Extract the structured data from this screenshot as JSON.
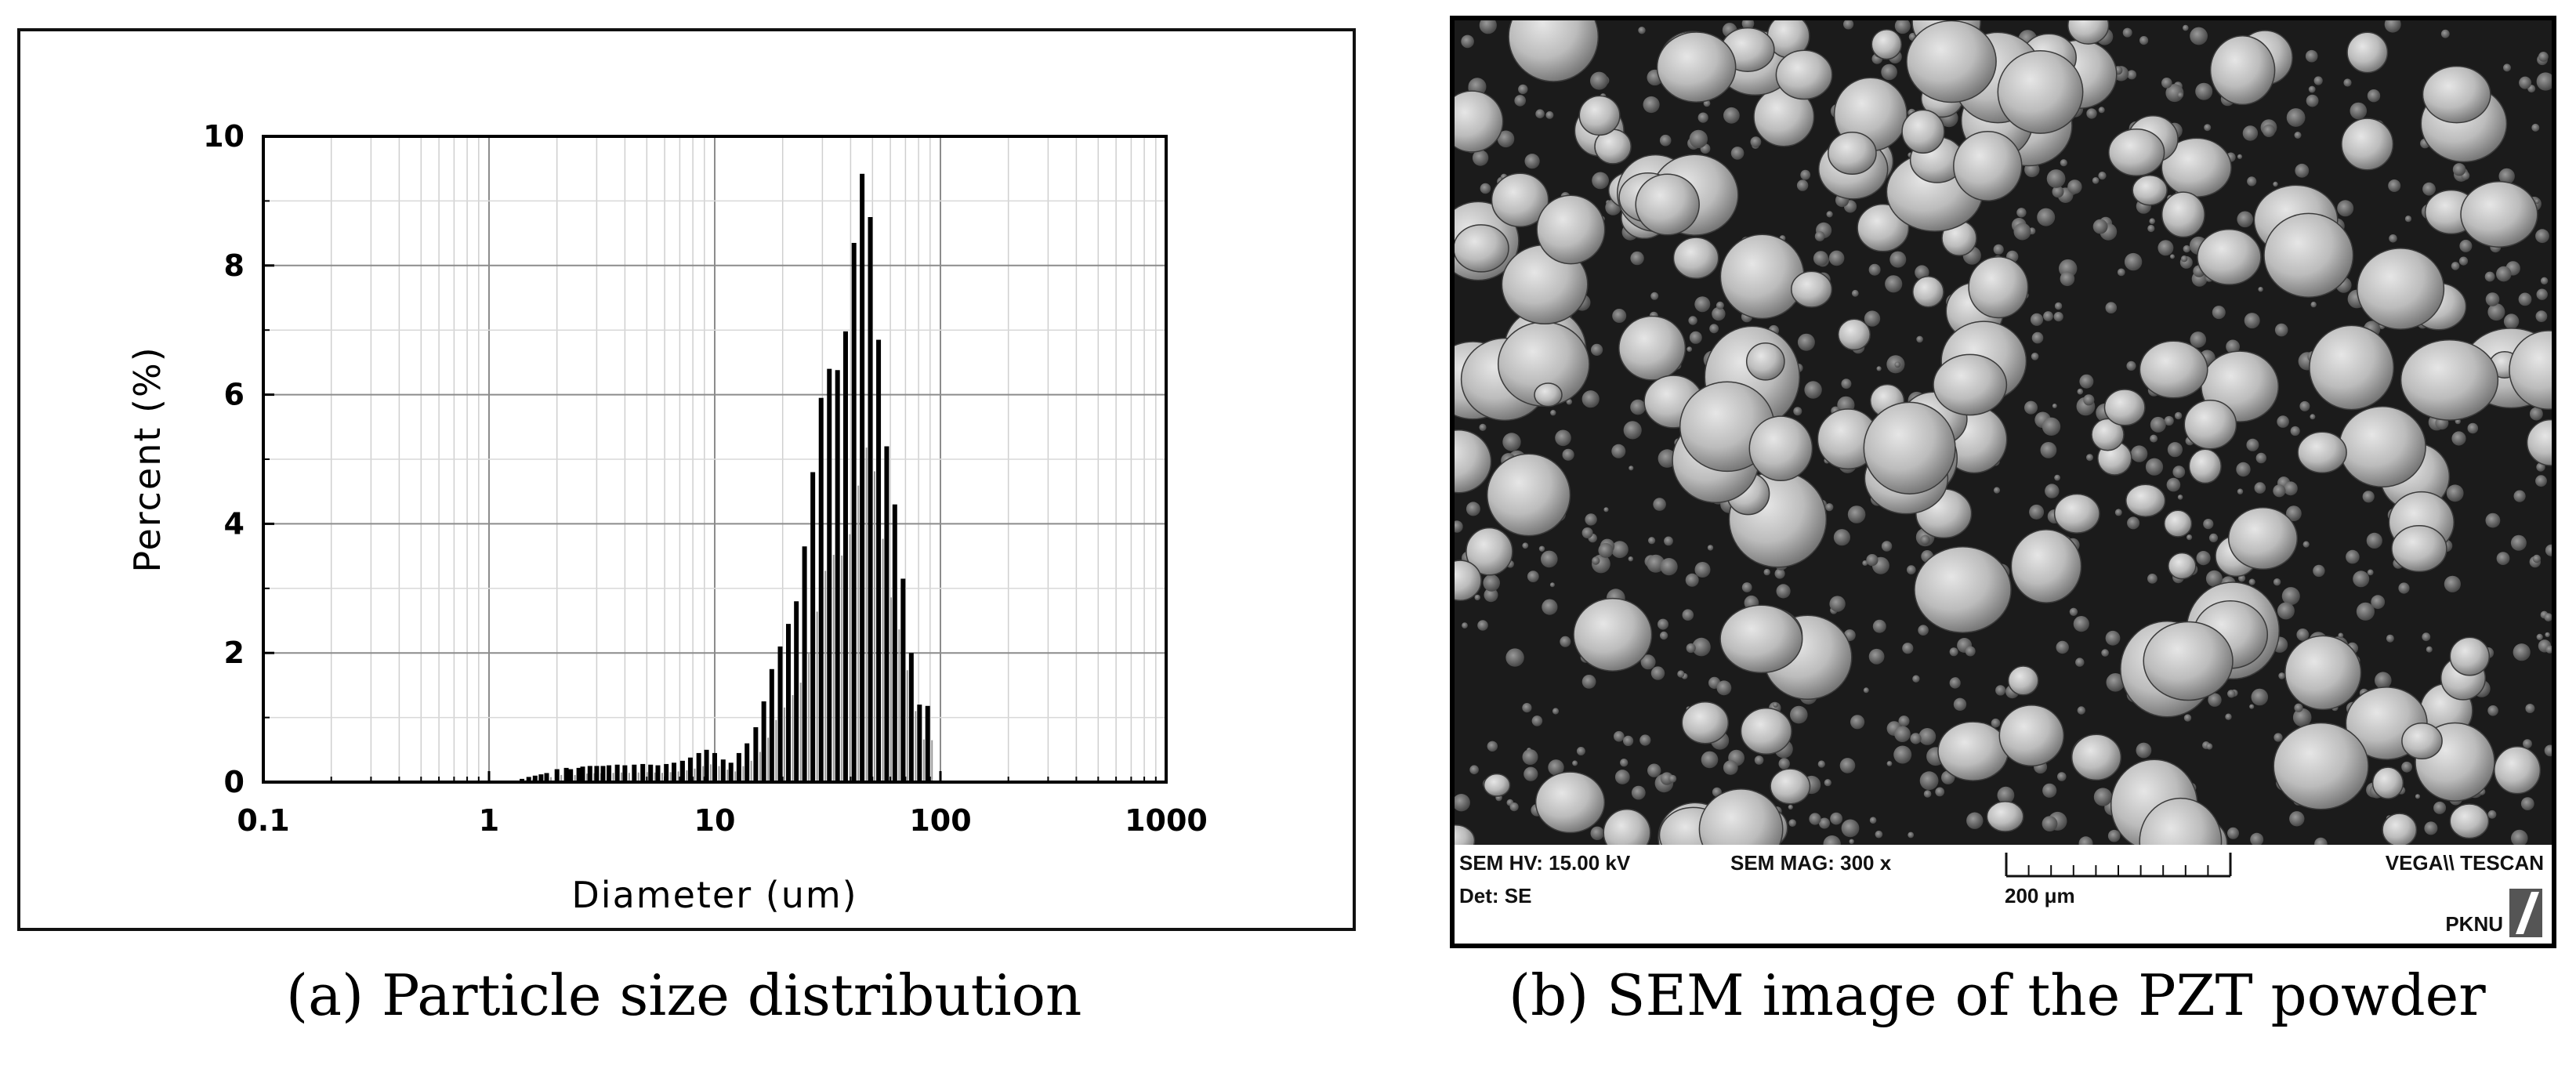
{
  "chart_data": {
    "type": "bar",
    "xscale": "log",
    "xlabel": "Diameter (um)",
    "ylabel": "Percent (%)",
    "xlim": [
      0.1,
      1000
    ],
    "ylim": [
      0,
      10
    ],
    "xticks": [
      "0.1",
      "1",
      "10",
      "100",
      "1000"
    ],
    "yticks": [
      "0",
      "2",
      "4",
      "6",
      "8",
      "10"
    ],
    "grid": true,
    "x": [
      1.4,
      1.5,
      1.6,
      1.7,
      1.8,
      2.0,
      2.2,
      2.3,
      2.5,
      2.6,
      2.8,
      3.0,
      3.2,
      3.4,
      3.7,
      4.0,
      4.4,
      4.8,
      5.2,
      5.6,
      6.1,
      6.6,
      7.2,
      7.8,
      8.5,
      9.2,
      10.0,
      10.9,
      11.8,
      12.8,
      13.9,
      15.2,
      16.5,
      17.9,
      19.5,
      21.2,
      23.0,
      25.0,
      27.2,
      29.6,
      32.2,
      35.0,
      38.0,
      41.4,
      45.0,
      48.9,
      53.2,
      57.8,
      62.8,
      68.3,
      74.3,
      80.8,
      87.8,
      95.4
    ],
    "values": [
      0.05,
      0.08,
      0.1,
      0.12,
      0.14,
      0.2,
      0.22,
      0.2,
      0.22,
      0.24,
      0.25,
      0.25,
      0.25,
      0.26,
      0.27,
      0.26,
      0.27,
      0.28,
      0.27,
      0.26,
      0.28,
      0.3,
      0.33,
      0.38,
      0.45,
      0.5,
      0.45,
      0.35,
      0.3,
      0.45,
      0.6,
      0.85,
      1.25,
      1.75,
      2.1,
      2.45,
      2.8,
      3.65,
      4.8,
      5.95,
      6.4,
      6.38,
      6.98,
      8.35,
      9.42,
      8.75,
      6.85,
      5.2,
      4.3,
      3.15,
      2.0,
      1.2,
      1.18,
      0.02
    ]
  },
  "sem": {
    "hv": "SEM HV: 15.00 kV",
    "mag": "SEM MAG: 300 x",
    "det": "Det: SE",
    "scale": "200 μm",
    "brand": "VEGA\\\\ TESCAN",
    "logo": "PKNU",
    "colors": {
      "background": "#1b1b1b",
      "particle": "#bdbdbd",
      "particle_dark": "#7a7a7a"
    }
  },
  "captions": {
    "a": "(a) Particle size distribution",
    "b": "(b) SEM image of the PZT powder"
  }
}
